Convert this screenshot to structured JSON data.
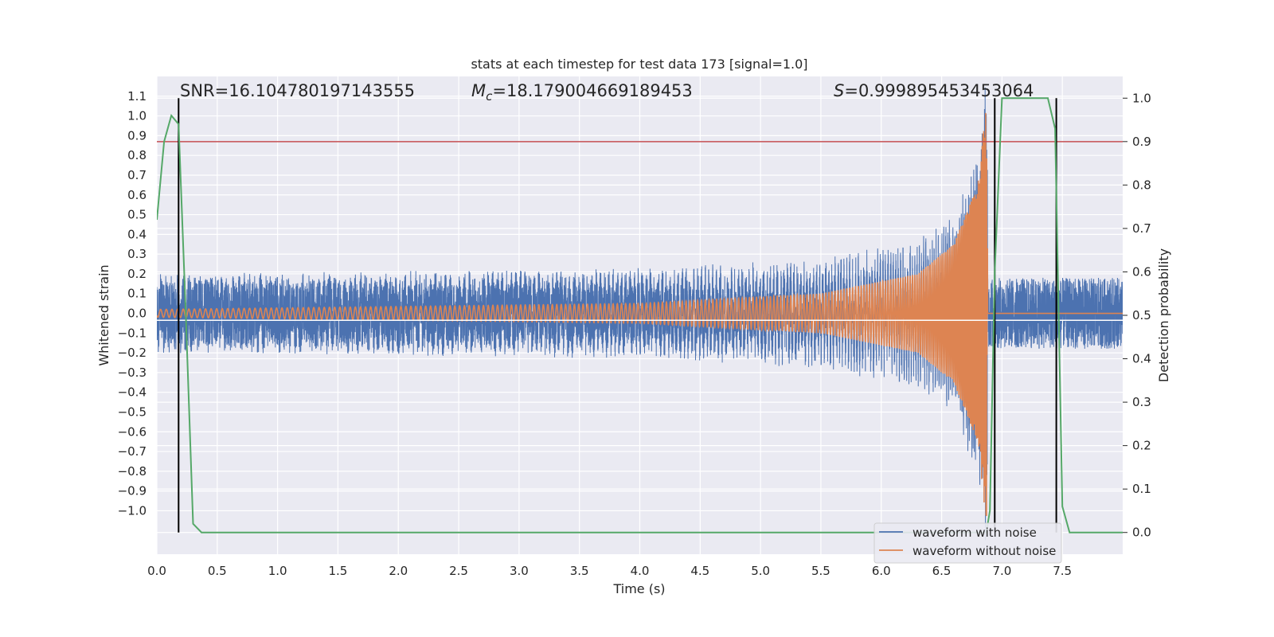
{
  "chart_data": {
    "type": "line",
    "title": "stats at each timestep for test data 173 [signal=1.0]",
    "xlabel": "Time (s)",
    "ylabel": "Whitened strain",
    "y2label": "Detection probability",
    "xlim": [
      0.0,
      8.0
    ],
    "ylim": [
      -1.22,
      1.2
    ],
    "y2lim": [
      -0.05,
      1.05
    ],
    "xticks": [
      "0.0",
      "0.5",
      "1.0",
      "1.5",
      "2.0",
      "2.5",
      "3.0",
      "3.5",
      "4.0",
      "4.5",
      "5.0",
      "5.5",
      "6.0",
      "6.5",
      "7.0",
      "7.5"
    ],
    "xtick_values": [
      0.0,
      0.5,
      1.0,
      1.5,
      2.0,
      2.5,
      3.0,
      3.5,
      4.0,
      4.5,
      5.0,
      5.5,
      6.0,
      6.5,
      7.0,
      7.5
    ],
    "yticks": [
      "1.1",
      "1.0",
      "0.9",
      "0.8",
      "0.7",
      "0.6",
      "0.5",
      "0.4",
      "0.3",
      "0.2",
      "0.1",
      "0.0",
      "−0.1",
      "−0.2",
      "−0.3",
      "−0.4",
      "−0.5",
      "−0.6",
      "−0.7",
      "−0.8",
      "−0.9",
      "−1.0"
    ],
    "ytick_values": [
      1.1,
      1.0,
      0.9,
      0.8,
      0.7,
      0.6,
      0.5,
      0.4,
      0.3,
      0.2,
      0.1,
      0.0,
      -0.1,
      -0.2,
      -0.3,
      -0.4,
      -0.5,
      -0.6,
      -0.7,
      -0.8,
      -0.9,
      -1.0
    ],
    "y2ticks": [
      "1.0",
      "0.9",
      "0.8",
      "0.7",
      "0.6",
      "0.5",
      "0.4",
      "0.3",
      "0.2",
      "0.1",
      "0.0"
    ],
    "y2tick_values": [
      1.0,
      0.9,
      0.8,
      0.7,
      0.6,
      0.5,
      0.4,
      0.3,
      0.2,
      0.1,
      0.0
    ],
    "annotations": {
      "snr": "SNR=16.104780197143555",
      "mc_symbol": "M",
      "mc_sub": "c",
      "mc_value": "=18.179004669189453",
      "s_symbol": "S",
      "s_value": "=0.999895453453064"
    },
    "grid": true,
    "legend_position": "lower-right",
    "series": [
      {
        "name": "waveform with noise",
        "color": "#4c72b0",
        "axis": "left",
        "noise_amplitude": 0.18,
        "chirp_envelope": {
          "t": [
            0.0,
            4.0,
            5.5,
            6.3,
            6.6,
            6.8,
            6.87,
            6.92
          ],
          "amp": [
            0.02,
            0.05,
            0.1,
            0.2,
            0.35,
            0.65,
            1.08,
            0.0
          ]
        }
      },
      {
        "name": "waveform without noise",
        "color": "#dd8452",
        "axis": "left",
        "chirp_envelope": {
          "t": [
            0.0,
            4.0,
            5.5,
            6.3,
            6.6,
            6.8,
            6.87,
            6.92
          ],
          "amp": [
            0.02,
            0.05,
            0.1,
            0.2,
            0.35,
            0.65,
            1.08,
            0.0
          ]
        },
        "merger_time": 6.88
      },
      {
        "name": "",
        "color": "#55a868",
        "axis": "right",
        "x": [
          0.0,
          0.06,
          0.12,
          0.18,
          0.24,
          0.3,
          0.37,
          0.43,
          6.87,
          6.9,
          6.94,
          7.0,
          7.38,
          7.44,
          7.5,
          7.56,
          7.62,
          8.0
        ],
        "y": [
          0.72,
          0.9,
          0.96,
          0.94,
          0.5,
          0.02,
          0.0,
          0.0,
          0.0,
          0.05,
          0.6,
          1.0,
          1.0,
          0.93,
          0.06,
          0.0,
          0.0,
          0.0
        ]
      }
    ],
    "threshold": {
      "axis": "right",
      "y": 0.9,
      "color": "#c44e52"
    },
    "vertical_lines": {
      "x": [
        0.18,
        6.94,
        7.45
      ],
      "color": "#000000"
    },
    "hline_left": {
      "y": -0.035,
      "color": "#ffffff"
    }
  }
}
